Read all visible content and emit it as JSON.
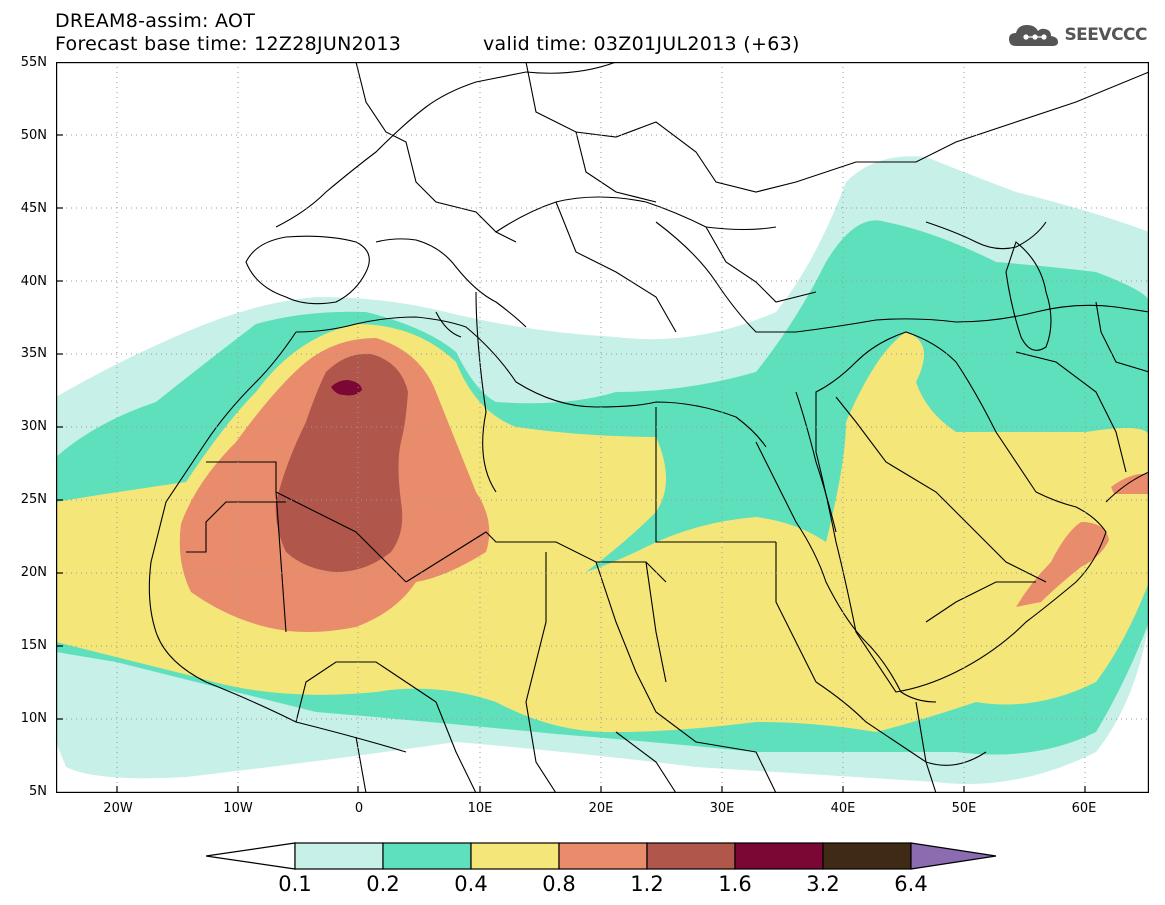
{
  "header": {
    "line1": "DREAM8-assim: AOT",
    "line2": "Forecast base time: 12Z28JUN2013",
    "line3": "valid time: 03Z01JUL2013 (+63)"
  },
  "logo": {
    "text": "SEEVCCC",
    "icon": "cloud-icon"
  },
  "map": {
    "lat_labels": [
      "55N",
      "50N",
      "45N",
      "40N",
      "35N",
      "30N",
      "25N",
      "20N",
      "15N",
      "10N",
      "5N"
    ],
    "lon_labels": [
      "20W",
      "10W",
      "0",
      "10E",
      "20E",
      "30E",
      "40E",
      "50E",
      "60E"
    ],
    "lat_range": [
      5,
      55
    ],
    "lon_range": [
      -25,
      65
    ],
    "gridlines": "dotted"
  },
  "colorbar": {
    "labels": [
      "0.1",
      "0.2",
      "0.4",
      "0.8",
      "1.2",
      "1.6",
      "3.2",
      "6.4"
    ],
    "colors": [
      "#ffffff",
      "#c6f0e8",
      "#5ee0bc",
      "#f5e67a",
      "#e98c6c",
      "#b1564b",
      "#7b0735",
      "#3f2a15",
      "#8c6bb1"
    ]
  }
}
